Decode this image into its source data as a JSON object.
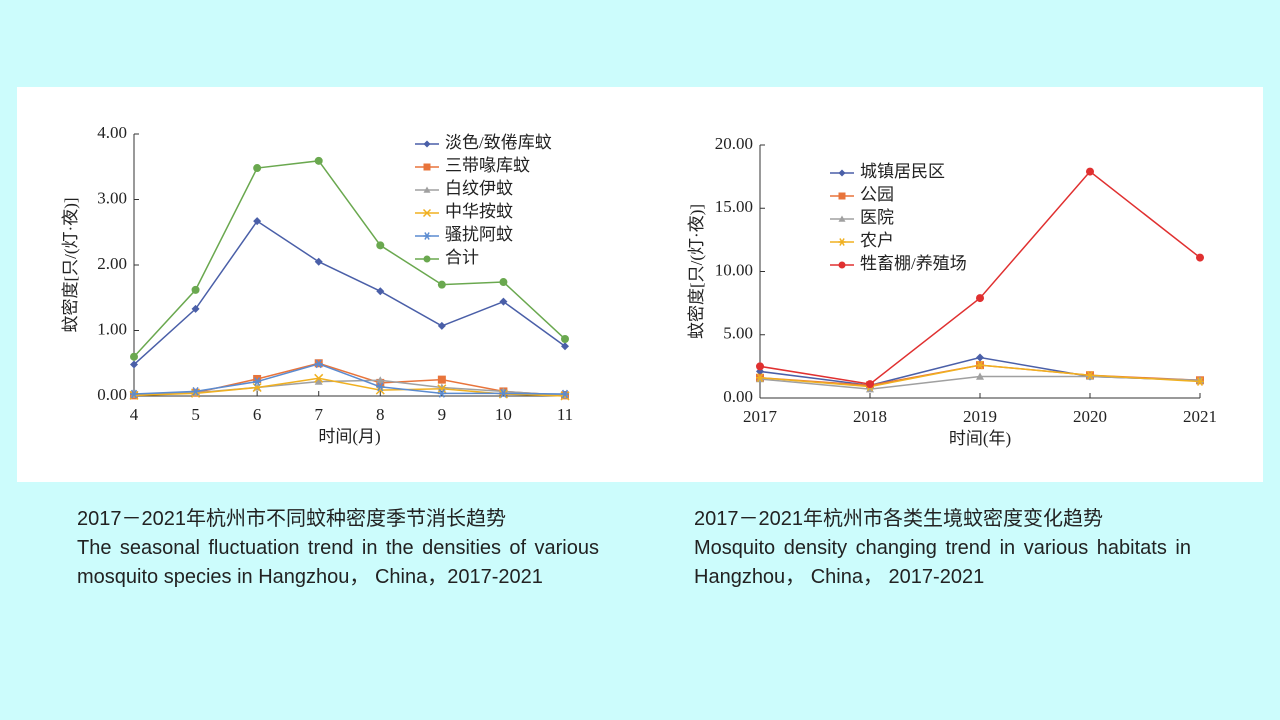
{
  "chart_data": [
    {
      "type": "line",
      "xlabel": "时间(月)",
      "ylabel": "蚊密度[只/(灯·夜)]",
      "x": [
        4,
        5,
        6,
        7,
        8,
        9,
        10,
        11
      ],
      "xlim": [
        4,
        11
      ],
      "xticks": [
        4,
        5,
        6,
        7,
        8,
        9,
        10,
        11
      ],
      "ylim": [
        0,
        4
      ],
      "yticks": [
        {
          "value": 0,
          "label": "0.00"
        },
        {
          "value": 1,
          "label": "1.00"
        },
        {
          "value": 2,
          "label": "2.00"
        },
        {
          "value": 3,
          "label": "3.00"
        },
        {
          "value": 4,
          "label": "4.00"
        }
      ],
      "legend": "upper right",
      "series": [
        {
          "name": "淡色/致倦库蚊",
          "color": "#4a5fa8",
          "marker": "diamond",
          "values": [
            0.48,
            1.33,
            2.67,
            2.05,
            1.6,
            1.07,
            1.44,
            0.76
          ]
        },
        {
          "name": "三带喙库蚊",
          "color": "#e8743b",
          "marker": "square",
          "values": [
            0.01,
            0.05,
            0.26,
            0.5,
            0.2,
            0.25,
            0.07,
            0.01
          ]
        },
        {
          "name": "白纹伊蚊",
          "color": "#a0a0a0",
          "marker": "triangle",
          "values": [
            0.02,
            0.05,
            0.13,
            0.22,
            0.24,
            0.13,
            0.07,
            0.01
          ]
        },
        {
          "name": "中华按蚊",
          "color": "#f0b020",
          "marker": "x",
          "values": [
            0.01,
            0.04,
            0.13,
            0.27,
            0.09,
            0.11,
            0.03,
            0
          ]
        },
        {
          "name": "骚扰阿蚊",
          "color": "#5b8bd0",
          "marker": "star",
          "values": [
            0.03,
            0.07,
            0.22,
            0.49,
            0.14,
            0.04,
            0.04,
            0.03
          ]
        },
        {
          "name": "合计",
          "color": "#6aa84f",
          "marker": "circle",
          "values": [
            0.6,
            1.62,
            3.48,
            3.59,
            2.3,
            1.7,
            1.74,
            0.87
          ]
        }
      ],
      "caption": {
        "zh": "2017－2021年杭州市不同蚊种密度季节消长趋势",
        "en": "The seasonal fluctuation trend in the densities of various mosquito species in Hangzhou， China，2017-2021"
      }
    },
    {
      "type": "line",
      "xlabel": "时间(年)",
      "ylabel": "蚊密度[只/(灯·夜)]",
      "x": [
        2017,
        2018,
        2019,
        2020,
        2021
      ],
      "xlim": [
        2017,
        2021
      ],
      "xticks": [
        2017,
        2018,
        2019,
        2020,
        2021
      ],
      "ylim": [
        0,
        20
      ],
      "yticks": [
        {
          "value": 0,
          "label": "0.00"
        },
        {
          "value": 5,
          "label": "5.00"
        },
        {
          "value": 10,
          "label": "10.00"
        },
        {
          "value": 15,
          "label": "15.00"
        },
        {
          "value": 20,
          "label": "20.00"
        }
      ],
      "legend": "upper left",
      "series": [
        {
          "name": "城镇居民区",
          "color": "#4a5fa8",
          "marker": "diamond",
          "values": [
            2.1,
            1.0,
            3.2,
            1.7,
            1.4
          ]
        },
        {
          "name": "公园",
          "color": "#e8743b",
          "marker": "square",
          "values": [
            1.6,
            1.0,
            2.6,
            1.8,
            1.4
          ]
        },
        {
          "name": "医院",
          "color": "#a0a0a0",
          "marker": "triangle",
          "values": [
            1.5,
            0.7,
            1.7,
            1.7,
            1.4
          ]
        },
        {
          "name": "农户",
          "color": "#f0b020",
          "marker": "star",
          "values": [
            1.6,
            0.9,
            2.6,
            1.8,
            1.3
          ]
        },
        {
          "name": "牲畜棚/养殖场",
          "color": "#e03030",
          "marker": "circle",
          "values": [
            2.5,
            1.1,
            7.9,
            17.9,
            11.1
          ]
        }
      ],
      "caption": {
        "zh": "2017－2021年杭州市各类生境蚊密度变化趋势",
        "en": "Mosquito density changing trend in various habitats in Hangzhou， China， 2017-2021"
      }
    }
  ]
}
